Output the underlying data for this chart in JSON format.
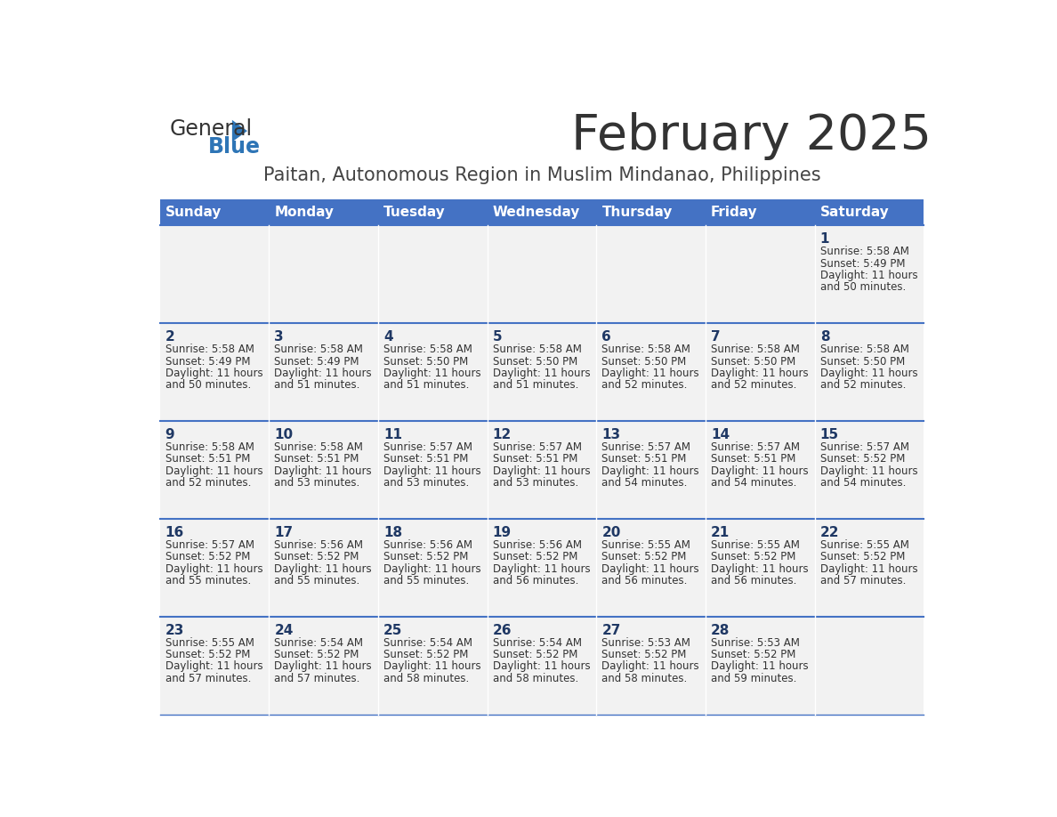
{
  "title": "February 2025",
  "subtitle": "Paitan, Autonomous Region in Muslim Mindanao, Philippines",
  "days_of_week": [
    "Sunday",
    "Monday",
    "Tuesday",
    "Wednesday",
    "Thursday",
    "Friday",
    "Saturday"
  ],
  "header_bg": "#4472C4",
  "header_text": "#FFFFFF",
  "row_bg": "#F2F2F2",
  "cell_text_color": "#333333",
  "day_num_color": "#1F3864",
  "border_color": "#4472C4",
  "title_color": "#333333",
  "subtitle_color": "#444444",
  "logo_text_color": "#333333",
  "logo_blue_color": "#2E75B6",
  "calendar": [
    [
      null,
      null,
      null,
      null,
      null,
      null,
      {
        "day": 1,
        "sunrise": "5:58 AM",
        "sunset": "5:49 PM",
        "daylight": "11 hours and 50 minutes."
      }
    ],
    [
      {
        "day": 2,
        "sunrise": "5:58 AM",
        "sunset": "5:49 PM",
        "daylight": "11 hours and 50 minutes."
      },
      {
        "day": 3,
        "sunrise": "5:58 AM",
        "sunset": "5:49 PM",
        "daylight": "11 hours and 51 minutes."
      },
      {
        "day": 4,
        "sunrise": "5:58 AM",
        "sunset": "5:50 PM",
        "daylight": "11 hours and 51 minutes."
      },
      {
        "day": 5,
        "sunrise": "5:58 AM",
        "sunset": "5:50 PM",
        "daylight": "11 hours and 51 minutes."
      },
      {
        "day": 6,
        "sunrise": "5:58 AM",
        "sunset": "5:50 PM",
        "daylight": "11 hours and 52 minutes."
      },
      {
        "day": 7,
        "sunrise": "5:58 AM",
        "sunset": "5:50 PM",
        "daylight": "11 hours and 52 minutes."
      },
      {
        "day": 8,
        "sunrise": "5:58 AM",
        "sunset": "5:50 PM",
        "daylight": "11 hours and 52 minutes."
      }
    ],
    [
      {
        "day": 9,
        "sunrise": "5:58 AM",
        "sunset": "5:51 PM",
        "daylight": "11 hours and 52 minutes."
      },
      {
        "day": 10,
        "sunrise": "5:58 AM",
        "sunset": "5:51 PM",
        "daylight": "11 hours and 53 minutes."
      },
      {
        "day": 11,
        "sunrise": "5:57 AM",
        "sunset": "5:51 PM",
        "daylight": "11 hours and 53 minutes."
      },
      {
        "day": 12,
        "sunrise": "5:57 AM",
        "sunset": "5:51 PM",
        "daylight": "11 hours and 53 minutes."
      },
      {
        "day": 13,
        "sunrise": "5:57 AM",
        "sunset": "5:51 PM",
        "daylight": "11 hours and 54 minutes."
      },
      {
        "day": 14,
        "sunrise": "5:57 AM",
        "sunset": "5:51 PM",
        "daylight": "11 hours and 54 minutes."
      },
      {
        "day": 15,
        "sunrise": "5:57 AM",
        "sunset": "5:52 PM",
        "daylight": "11 hours and 54 minutes."
      }
    ],
    [
      {
        "day": 16,
        "sunrise": "5:57 AM",
        "sunset": "5:52 PM",
        "daylight": "11 hours and 55 minutes."
      },
      {
        "day": 17,
        "sunrise": "5:56 AM",
        "sunset": "5:52 PM",
        "daylight": "11 hours and 55 minutes."
      },
      {
        "day": 18,
        "sunrise": "5:56 AM",
        "sunset": "5:52 PM",
        "daylight": "11 hours and 55 minutes."
      },
      {
        "day": 19,
        "sunrise": "5:56 AM",
        "sunset": "5:52 PM",
        "daylight": "11 hours and 56 minutes."
      },
      {
        "day": 20,
        "sunrise": "5:55 AM",
        "sunset": "5:52 PM",
        "daylight": "11 hours and 56 minutes."
      },
      {
        "day": 21,
        "sunrise": "5:55 AM",
        "sunset": "5:52 PM",
        "daylight": "11 hours and 56 minutes."
      },
      {
        "day": 22,
        "sunrise": "5:55 AM",
        "sunset": "5:52 PM",
        "daylight": "11 hours and 57 minutes."
      }
    ],
    [
      {
        "day": 23,
        "sunrise": "5:55 AM",
        "sunset": "5:52 PM",
        "daylight": "11 hours and 57 minutes."
      },
      {
        "day": 24,
        "sunrise": "5:54 AM",
        "sunset": "5:52 PM",
        "daylight": "11 hours and 57 minutes."
      },
      {
        "day": 25,
        "sunrise": "5:54 AM",
        "sunset": "5:52 PM",
        "daylight": "11 hours and 58 minutes."
      },
      {
        "day": 26,
        "sunrise": "5:54 AM",
        "sunset": "5:52 PM",
        "daylight": "11 hours and 58 minutes."
      },
      {
        "day": 27,
        "sunrise": "5:53 AM",
        "sunset": "5:52 PM",
        "daylight": "11 hours and 58 minutes."
      },
      {
        "day": 28,
        "sunrise": "5:53 AM",
        "sunset": "5:52 PM",
        "daylight": "11 hours and 59 minutes."
      },
      null
    ]
  ],
  "fig_width": 11.88,
  "fig_height": 9.18,
  "dpi": 100
}
